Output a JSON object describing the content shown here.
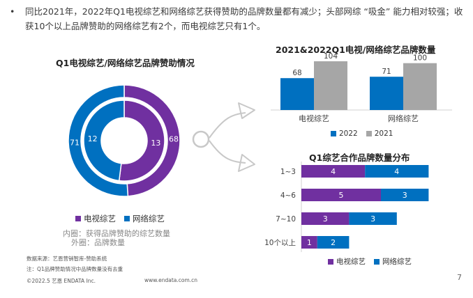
{
  "intro": {
    "bullet": "•",
    "text": "同比2021年，2022年Q1电视综艺和网络综艺获得赞助的品牌数量都有减少；头部网综 “吸金” 能力相对较强；收获10个以上品牌赞助的网络综艺有2个，而电视综艺只有1个。"
  },
  "donut": {
    "title": "Q1电视综艺/网络综艺品牌赞助情况",
    "legend": [
      {
        "label": "电视综艺",
        "color": "#7030A0"
      },
      {
        "label": "网络综艺",
        "color": "#0070C0"
      }
    ],
    "note_inner": "内圈：获得品牌赞助的综艺数量",
    "note_outer": "外圈：品牌数量"
  },
  "bar": {
    "title": "2021&2022Q1电视/网络综艺品牌数量",
    "legend": [
      {
        "label": "2022",
        "color": "#0070C0"
      },
      {
        "label": "2021",
        "color": "#A6A6A6"
      }
    ]
  },
  "hbar": {
    "title": "Q1综艺合作品牌数量分布",
    "legend": [
      {
        "label": "电视综艺",
        "color": "#7030A0"
      },
      {
        "label": "网络综艺",
        "color": "#0070C0"
      }
    ]
  },
  "footer": {
    "source": "数据来源：艺恩营销智库-赞助系统",
    "note": "注：Q1品牌赞助情况中品牌数量没有去重",
    "copyright": "©2022.5 艺恩 ENDATA Inc.",
    "site": "www.endata.com.cn",
    "page": "7"
  },
  "chart_data": [
    {
      "type": "pie",
      "title": "Q1电视综艺/网络综艺品牌赞助情况",
      "rings": [
        {
          "name": "内圈",
          "slices": [
            {
              "label": "电视综艺",
              "value": 13
            },
            {
              "label": "网络综艺",
              "value": 12
            }
          ]
        },
        {
          "name": "外圈",
          "slices": [
            {
              "label": "电视综艺",
              "value": 68
            },
            {
              "label": "网络综艺",
              "value": 71
            }
          ]
        }
      ],
      "legend": "bottom"
    },
    {
      "type": "bar",
      "title": "2021&2022Q1电视/网络综艺品牌数量",
      "categories": [
        "电视综艺",
        "网络综艺"
      ],
      "series": [
        {
          "name": "2022",
          "values": [
            68,
            71
          ],
          "color": "#0070C0"
        },
        {
          "name": "2021",
          "values": [
            104,
            100
          ],
          "color": "#A6A6A6"
        }
      ],
      "ylim": [
        0,
        104
      ],
      "legend": "bottom"
    },
    {
      "type": "bar",
      "orientation": "horizontal",
      "stacked": true,
      "title": "Q1综艺合作品牌数量分布",
      "categories": [
        "1~3",
        "4~6",
        "7~10",
        "10个以上"
      ],
      "series": [
        {
          "name": "电视综艺",
          "values": [
            4,
            5,
            3,
            1
          ],
          "color": "#7030A0"
        },
        {
          "name": "网络综艺",
          "values": [
            4,
            3,
            3,
            2
          ],
          "color": "#0070C0"
        }
      ],
      "legend": "bottom"
    }
  ]
}
